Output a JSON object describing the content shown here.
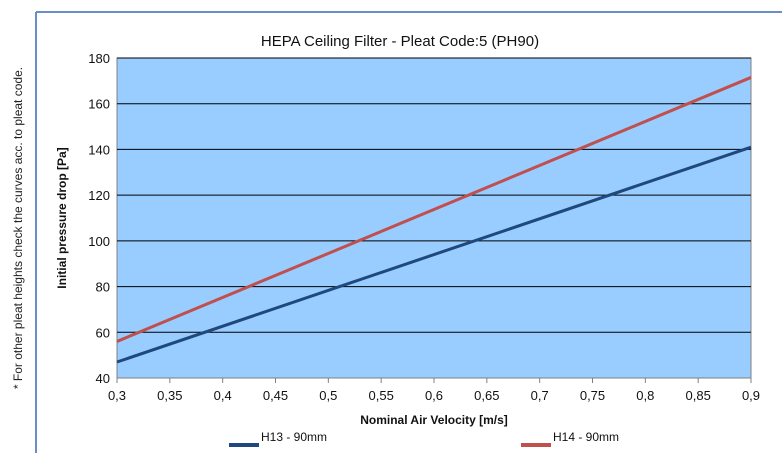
{
  "side_note": "* For other pleat heights check the curves acc. to pleat code.",
  "colors": {
    "plot_background": "#99CCFF",
    "grid": "#000000",
    "frame": "#6b8fc4",
    "series_h13": "#1F497D",
    "series_h14": "#C0504D"
  },
  "chart_data": {
    "type": "line",
    "title": "HEPA Ceiling Filter - Pleat Code:5 (PH90)",
    "xlabel": "Nominal Air Velocity [m/s]",
    "ylabel": "Initial pressure drop [Pa]",
    "xlim": [
      0.3,
      0.9
    ],
    "ylim": [
      40,
      180
    ],
    "grid": true,
    "legend_position": "bottom",
    "x_ticks": [
      "0,3",
      "0,35",
      "0,4",
      "0,45",
      "0,5",
      "0,55",
      "0,6",
      "0,65",
      "0,7",
      "0,75",
      "0,8",
      "0,85",
      "0,9"
    ],
    "x_tick_values": [
      0.3,
      0.35,
      0.4,
      0.45,
      0.5,
      0.55,
      0.6,
      0.65,
      0.7,
      0.75,
      0.8,
      0.85,
      0.9
    ],
    "y_ticks": [
      "40",
      "60",
      "80",
      "100",
      "120",
      "140",
      "160",
      "180"
    ],
    "y_tick_values": [
      40,
      60,
      80,
      100,
      120,
      140,
      160,
      180
    ],
    "series": [
      {
        "name": "H13 - 90mm",
        "x": [
          0.3,
          0.9
        ],
        "y": [
          47,
          141
        ]
      },
      {
        "name": "H14 - 90mm",
        "x": [
          0.3,
          0.9
        ],
        "y": [
          56,
          171.5
        ]
      }
    ]
  }
}
